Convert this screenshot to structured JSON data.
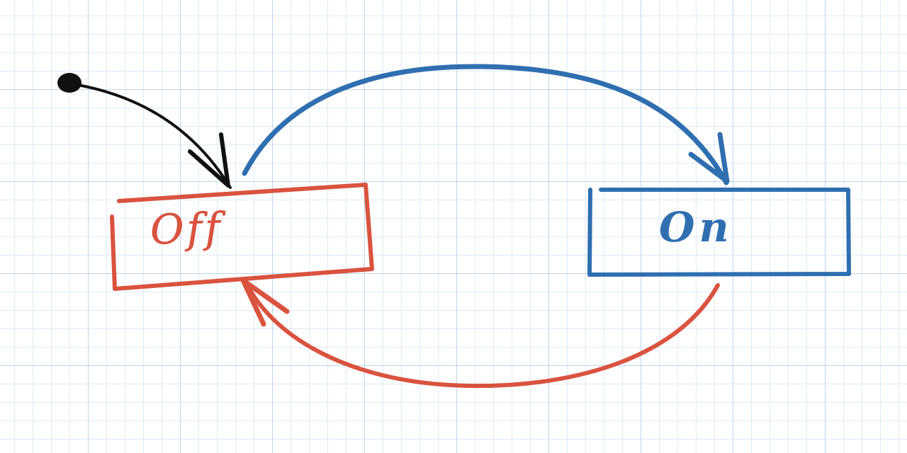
{
  "states": [
    {
      "id": "off",
      "label": "Off",
      "color": "#d9533f"
    },
    {
      "id": "on",
      "label": "On",
      "color": "#2f6fb0"
    }
  ],
  "transitions": [
    {
      "from": "initial",
      "to": "off",
      "color": "#111111"
    },
    {
      "from": "off",
      "to": "on",
      "color": "#2f6fb0"
    },
    {
      "from": "on",
      "to": "off",
      "color": "#d9533f"
    }
  ],
  "initial_marker_color": "#111111"
}
